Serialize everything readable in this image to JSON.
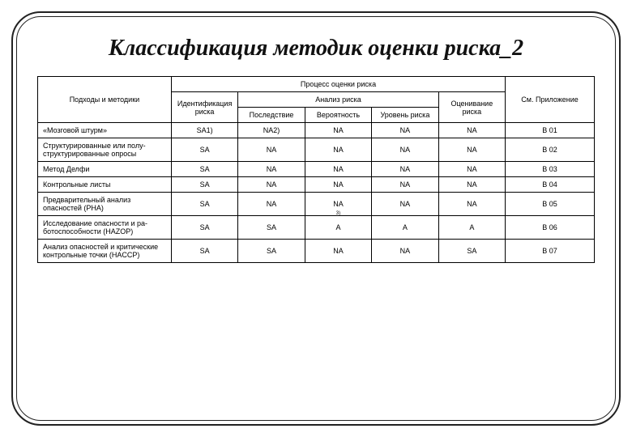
{
  "title": "Классификация методик оценки риска_2",
  "table": {
    "header": {
      "methods": "Подходы и методики",
      "process": "Процесс оценки риска",
      "identification": "Идентификация риска",
      "analysis": "Анализ риска",
      "evaluation": "Оценивание риска",
      "appendix": "См. Приложение",
      "consequence": "Последствие",
      "probability": "Вероятность",
      "level": "Уровень риска"
    },
    "rows": [
      {
        "method": "«Мозговой штурм»",
        "ident": "SA1)",
        "conseq": "NA2)",
        "prob": "NA",
        "level": "NA",
        "eval": "NA",
        "app": "В 01"
      },
      {
        "method": "Структурированные или полу­структурированные опросы",
        "ident": "SA",
        "conseq": "NA",
        "prob": "NA",
        "level": "NA",
        "eval": "NA",
        "app": "В 02"
      },
      {
        "method": "Метод Делфи",
        "ident": "SA",
        "conseq": "NA",
        "prob": "NA",
        "level": "NA",
        "eval": "NA",
        "app": "В 03"
      },
      {
        "method": "Контрольные листы",
        "ident": "SA",
        "conseq": "NA",
        "prob": "NA",
        "level": "NA",
        "eval": "NA",
        "app": "В 04"
      },
      {
        "method": "Предварительный анализ опасностей (PHA)",
        "ident": "SA",
        "conseq": "NA",
        "prob": "NA",
        "level": "NA",
        "eval": "NA",
        "app": "В 05"
      },
      {
        "method": "Исследование опасности и ра­ботоспособности (HAZOP)",
        "ident": "SA",
        "conseq": "SA",
        "prob": "A",
        "prob_over": "3)",
        "level": "A",
        "eval": "A",
        "app": "В 06"
      },
      {
        "method": "Анализ опасностей и критиче­ские контрольные точки (HACCP)",
        "ident": "SA",
        "conseq": "SA",
        "prob": "NA",
        "level": "NA",
        "eval": "SA",
        "app": "В 07"
      }
    ],
    "col_widths_pct": [
      24,
      12,
      12,
      12,
      12,
      12,
      16
    ]
  },
  "colors": {
    "text": "#000000",
    "border": "#000000",
    "background": "#ffffff"
  }
}
